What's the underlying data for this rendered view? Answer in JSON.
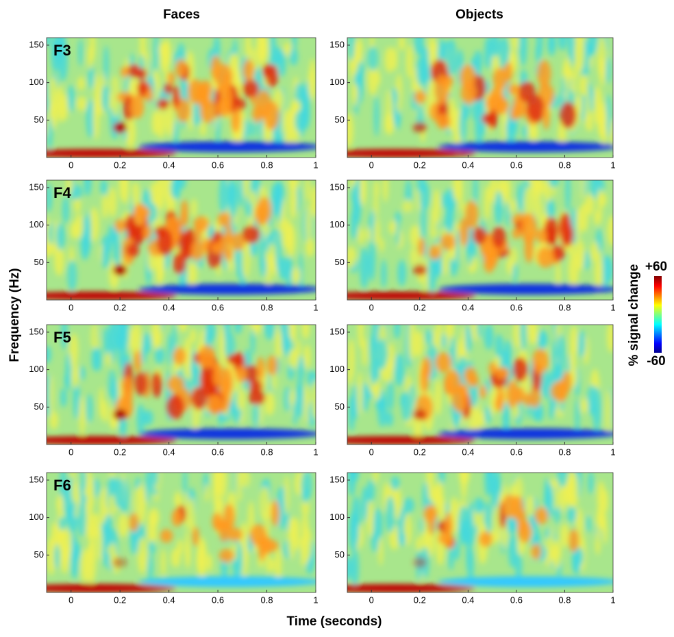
{
  "column_titles": [
    "Faces",
    "Objects"
  ],
  "xlabel": "Time (seconds)",
  "ylabel": "Frequency (Hz)",
  "colorbar": {
    "label": "% signal change",
    "lim": [
      -60,
      60
    ],
    "ticks": [
      {
        "value": 60,
        "label": "+60"
      },
      -60
    ]
  },
  "chart_data": [
    {
      "type": "heatmap",
      "title": "F3",
      "xlim": [
        -0.1,
        1
      ],
      "xticks": [
        0,
        0.2,
        0.4,
        0.6,
        0.8,
        1
      ],
      "ylim": [
        0,
        160
      ],
      "yticks": [
        50,
        100,
        150
      ]
    },
    {
      "type": "heatmap",
      "xlim": [
        -0.1,
        1
      ],
      "xticks": [
        0,
        0.2,
        0.4,
        0.6,
        0.8,
        1
      ],
      "ylim": [
        0,
        160
      ],
      "yticks": [
        50,
        100,
        150
      ]
    },
    {
      "type": "heatmap",
      "title": "F4",
      "xlim": [
        -0.1,
        1
      ],
      "xticks": [
        0,
        0.2,
        0.4,
        0.6,
        0.8,
        1
      ],
      "ylim": [
        0,
        160
      ],
      "yticks": [
        50,
        100,
        150
      ]
    },
    {
      "type": "heatmap",
      "xlim": [
        -0.1,
        1
      ],
      "xticks": [
        0,
        0.2,
        0.4,
        0.6,
        0.8,
        1
      ],
      "ylim": [
        0,
        160
      ],
      "yticks": [
        50,
        100,
        150
      ]
    },
    {
      "type": "heatmap",
      "title": "F5",
      "xlim": [
        -0.1,
        1
      ],
      "xticks": [
        0,
        0.2,
        0.4,
        0.6,
        0.8,
        1
      ],
      "ylim": [
        0,
        160
      ],
      "yticks": [
        50,
        100,
        150
      ]
    },
    {
      "type": "heatmap",
      "xlim": [
        -0.1,
        1
      ],
      "xticks": [
        0,
        0.2,
        0.4,
        0.6,
        0.8,
        1
      ],
      "ylim": [
        0,
        160
      ],
      "yticks": [
        50,
        100,
        150
      ]
    },
    {
      "type": "heatmap",
      "title": "F6",
      "xlim": [
        -0.1,
        1
      ],
      "xticks": [
        0,
        0.2,
        0.4,
        0.6,
        0.8,
        1
      ],
      "ylim": [
        0,
        160
      ],
      "yticks": [
        50,
        100,
        150
      ]
    },
    {
      "type": "heatmap",
      "xlim": [
        -0.1,
        1
      ],
      "xticks": [
        0,
        0.2,
        0.4,
        0.6,
        0.8,
        1
      ],
      "ylim": [
        0,
        160
      ],
      "yticks": [
        50,
        100,
        150
      ]
    }
  ]
}
